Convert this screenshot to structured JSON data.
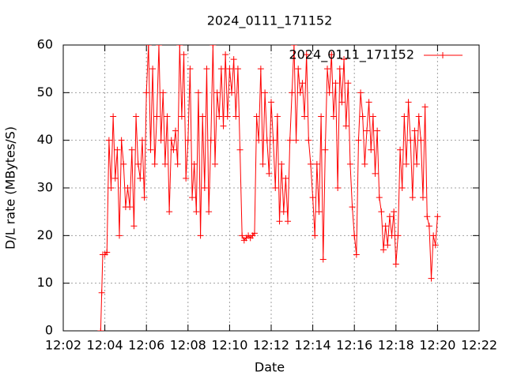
{
  "chart_data": {
    "type": "line",
    "title": "2024_0111_171152",
    "x_label": "Date",
    "y_label": "D/L rate (MBytes/S)",
    "xlim": [
      2,
      22
    ],
    "xticks": [
      {
        "value": 2,
        "label": "12:02"
      },
      {
        "value": 4,
        "label": "12:04"
      },
      {
        "value": 6,
        "label": "12:06"
      },
      {
        "value": 8,
        "label": "12:08"
      },
      {
        "value": 10,
        "label": "12:10"
      },
      {
        "value": 12,
        "label": "12:12"
      },
      {
        "value": 14,
        "label": "12:14"
      },
      {
        "value": 16,
        "label": "12:16"
      },
      {
        "value": 18,
        "label": "12:18"
      },
      {
        "value": 20,
        "label": "12:20"
      },
      {
        "value": 22,
        "label": "12:22"
      }
    ],
    "ylim": [
      0,
      60
    ],
    "yticks": [
      0,
      10,
      20,
      30,
      40,
      50,
      60
    ],
    "grid": true,
    "legend": "top-right",
    "x": [
      3.8,
      3.85,
      3.9,
      4.0,
      4.1,
      4.2,
      4.3,
      4.4,
      4.5,
      4.6,
      4.7,
      4.8,
      4.9,
      5.0,
      5.1,
      5.2,
      5.3,
      5.4,
      5.5,
      5.6,
      5.7,
      5.8,
      5.9,
      6.0,
      6.1,
      6.2,
      6.3,
      6.4,
      6.5,
      6.6,
      6.7,
      6.8,
      6.9,
      7.0,
      7.1,
      7.2,
      7.3,
      7.4,
      7.5,
      7.6,
      7.7,
      7.8,
      7.9,
      8.0,
      8.1,
      8.2,
      8.3,
      8.4,
      8.5,
      8.6,
      8.7,
      8.8,
      8.9,
      9.0,
      9.1,
      9.2,
      9.3,
      9.4,
      9.5,
      9.6,
      9.7,
      9.8,
      9.9,
      10.0,
      10.1,
      10.2,
      10.3,
      10.4,
      10.5,
      10.6,
      10.7,
      10.8,
      10.9,
      11.0,
      11.1,
      11.2,
      11.3,
      11.4,
      11.5,
      11.6,
      11.7,
      11.8,
      11.9,
      12.0,
      12.1,
      12.2,
      12.3,
      12.4,
      12.5,
      12.6,
      12.7,
      12.8,
      12.9,
      13.0,
      13.1,
      13.2,
      13.3,
      13.4,
      13.5,
      13.6,
      13.7,
      13.8,
      13.9,
      14.0,
      14.1,
      14.2,
      14.3,
      14.4,
      14.5,
      14.6,
      14.7,
      14.8,
      14.9,
      15.0,
      15.1,
      15.2,
      15.3,
      15.4,
      15.5,
      15.6,
      15.7,
      15.8,
      15.9,
      16.0,
      16.1,
      16.2,
      16.3,
      16.4,
      16.5,
      16.6,
      16.7,
      16.8,
      16.9,
      17.0,
      17.1,
      17.2,
      17.3,
      17.4,
      17.5,
      17.6,
      17.7,
      17.8,
      17.9,
      18.0,
      18.1,
      18.2,
      18.3,
      18.4,
      18.5,
      18.6,
      18.7,
      18.8,
      18.9,
      19.0,
      19.1,
      19.2,
      19.3,
      19.4,
      19.5,
      19.6,
      19.7,
      19.8,
      19.9,
      20.0
    ],
    "series": [
      {
        "name": "2024_0111_171152",
        "color": "#ff0000",
        "values": [
          0,
          8,
          16,
          16,
          16.5,
          40,
          30,
          45,
          32,
          38,
          20,
          40,
          35,
          26,
          30,
          26,
          38,
          22,
          45,
          35,
          32,
          40,
          28,
          50,
          60,
          38,
          55,
          35,
          45,
          60,
          40,
          50,
          35,
          45,
          25,
          40,
          38,
          42,
          35,
          60,
          45,
          58,
          32,
          40,
          55,
          28,
          35,
          25,
          50,
          20,
          45,
          30,
          55,
          25,
          40,
          60,
          35,
          50,
          45,
          55,
          43,
          58,
          45,
          55,
          50,
          57,
          45,
          55,
          38,
          20,
          19,
          19.5,
          20,
          19.5,
          20,
          20.5,
          45,
          40,
          55,
          35,
          50,
          40,
          33,
          48,
          40,
          30,
          45,
          23,
          35,
          25,
          32,
          23,
          40,
          50,
          60,
          40,
          55,
          50,
          52,
          45,
          58,
          40,
          35,
          28,
          20,
          35,
          25,
          45,
          15,
          38,
          55,
          50,
          58,
          45,
          52,
          30,
          55,
          48,
          57,
          43,
          52,
          35,
          26,
          20,
          16,
          40,
          50,
          45,
          35,
          42,
          48,
          38,
          45,
          33,
          42,
          28,
          25,
          17,
          22,
          18,
          24,
          20,
          25,
          14,
          20,
          38,
          30,
          45,
          35,
          48,
          40,
          28,
          42,
          35,
          45,
          40,
          28,
          47,
          24,
          22,
          11,
          20,
          18,
          24
        ]
      }
    ]
  }
}
